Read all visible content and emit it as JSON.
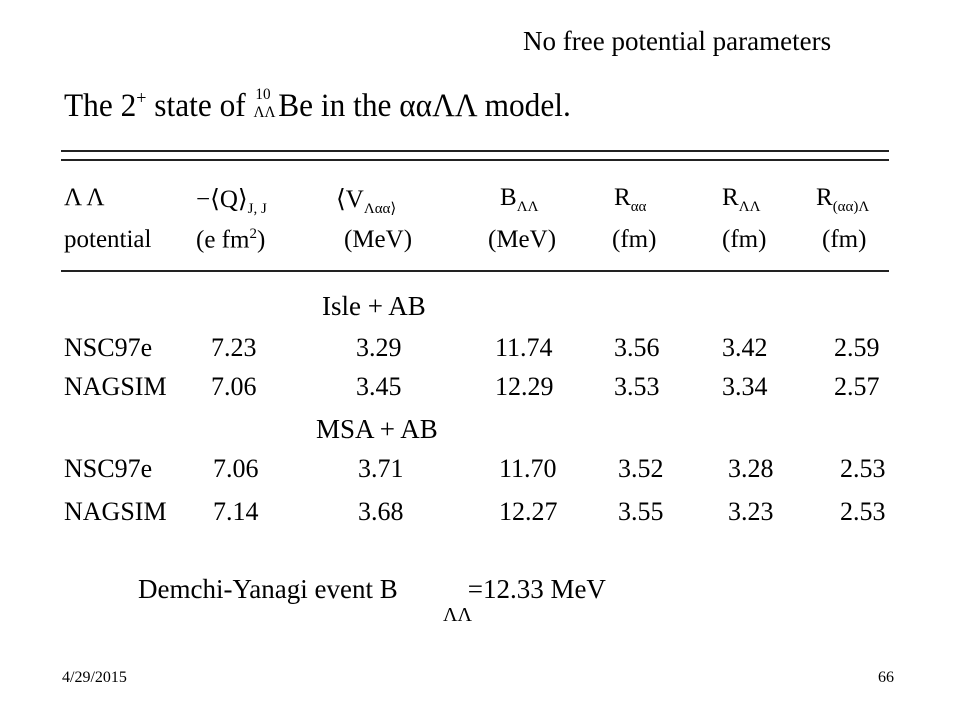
{
  "slide": {
    "heading": "No free potential parameters",
    "caption_prefix": "The 2",
    "caption_sup": "+",
    "caption_mid": " state of ",
    "be_mass": "10",
    "be_sub": "ΛΛ",
    "be_symbol": "Be",
    "caption_suffix": " in the ααΛΛ model.",
    "footer_date": "4/29/2015",
    "footer_page": "66"
  },
  "table": {
    "headers_row1": [
      "Λ Λ",
      "−⟨Q⟩",
      "⟨V",
      "B",
      "R",
      "R",
      "R"
    ],
    "headers_row1_subs": [
      "",
      "J, J",
      "Λαα⟩",
      "ΛΛ",
      "αα",
      "ΛΛ",
      "(αα)Λ"
    ],
    "headers_row2": [
      "potential",
      "(e fm",
      "(MeV)",
      "(MeV)",
      "(fm)",
      "(fm)",
      "(fm)"
    ],
    "unit_q_sup": "2",
    "unit_q_close": ")",
    "groups": [
      {
        "label": "Isle + AB",
        "rows": [
          [
            "NSC97e",
            "7.23",
            "3.29",
            "11.74",
            "3.56",
            "3.42",
            "2.59"
          ],
          [
            "NAGSIM",
            "7.06",
            "3.45",
            "12.29",
            "3.53",
            "3.34",
            "2.57"
          ]
        ]
      },
      {
        "label": "MSA + AB",
        "rows": [
          [
            "NSC97e",
            "7.06",
            "3.71",
            "11.70",
            "3.52",
            "3.28",
            "2.53"
          ],
          [
            "NAGSIM",
            "7.14",
            "3.68",
            "12.27",
            "3.55",
            "3.23",
            "2.53"
          ]
        ]
      }
    ]
  },
  "event": {
    "text": "Demchi-Yanagi  event B",
    "sub": "ΛΛ",
    "value": "=12.33 MeV"
  }
}
